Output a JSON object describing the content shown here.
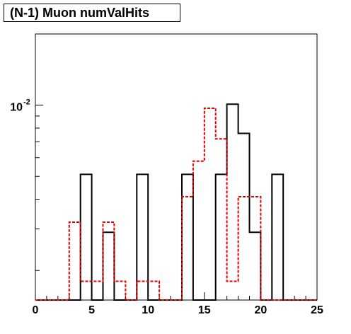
{
  "title": "(N-1) Muon numValHits",
  "chart_data": {
    "type": "bar",
    "xlim": [
      0,
      25
    ],
    "ylim_log": [
      0.0015,
      0.02
    ],
    "y_scale": "log",
    "x_ticks": [
      0,
      5,
      10,
      15,
      20,
      25
    ],
    "y_tick_labels": [
      {
        "value": 0.01,
        "base": "10",
        "exp": "-2"
      }
    ],
    "colors": {
      "black_series": "#000000",
      "red_series": "#e00000"
    },
    "series": [
      {
        "style": "solid",
        "color": "#000000",
        "bins": [
          {
            "x0": 0,
            "x1": 4,
            "y": 0
          },
          {
            "x0": 4,
            "x1": 5,
            "y": 0.0051
          },
          {
            "x0": 5,
            "x1": 6,
            "y": 0
          },
          {
            "x0": 6,
            "x1": 7,
            "y": 0.0029
          },
          {
            "x0": 7,
            "x1": 9,
            "y": 0
          },
          {
            "x0": 9,
            "x1": 10,
            "y": 0.0051
          },
          {
            "x0": 10,
            "x1": 13,
            "y": 0
          },
          {
            "x0": 13,
            "x1": 14,
            "y": 0.0051
          },
          {
            "x0": 14,
            "x1": 16,
            "y": 0
          },
          {
            "x0": 16,
            "x1": 17,
            "y": 0.0051
          },
          {
            "x0": 17,
            "x1": 18,
            "y": 0.0101
          },
          {
            "x0": 18,
            "x1": 19,
            "y": 0.0076
          },
          {
            "x0": 19,
            "x1": 20,
            "y": 0.0029
          },
          {
            "x0": 20,
            "x1": 21,
            "y": 0
          },
          {
            "x0": 21,
            "x1": 22,
            "y": 0.0051
          },
          {
            "x0": 22,
            "x1": 25,
            "y": 0
          }
        ]
      },
      {
        "style": "dashed",
        "color": "#e00000",
        "bins": [
          {
            "x0": 0,
            "x1": 3,
            "y": 0
          },
          {
            "x0": 3,
            "x1": 4,
            "y": 0.0032
          },
          {
            "x0": 4,
            "x1": 6,
            "y": 0.0018
          },
          {
            "x0": 6,
            "x1": 7,
            "y": 0.0032
          },
          {
            "x0": 7,
            "x1": 8,
            "y": 0.0018
          },
          {
            "x0": 8,
            "x1": 9,
            "y": 0
          },
          {
            "x0": 9,
            "x1": 11,
            "y": 0.0018
          },
          {
            "x0": 11,
            "x1": 13,
            "y": 0
          },
          {
            "x0": 13,
            "x1": 14,
            "y": 0.0041
          },
          {
            "x0": 14,
            "x1": 15,
            "y": 0.0058
          },
          {
            "x0": 15,
            "x1": 16,
            "y": 0.0097
          },
          {
            "x0": 16,
            "x1": 17,
            "y": 0.0072
          },
          {
            "x0": 17,
            "x1": 18,
            "y": 0.0018
          },
          {
            "x0": 18,
            "x1": 20,
            "y": 0.0041
          },
          {
            "x0": 20,
            "x1": 25,
            "y": 0
          }
        ]
      }
    ]
  }
}
